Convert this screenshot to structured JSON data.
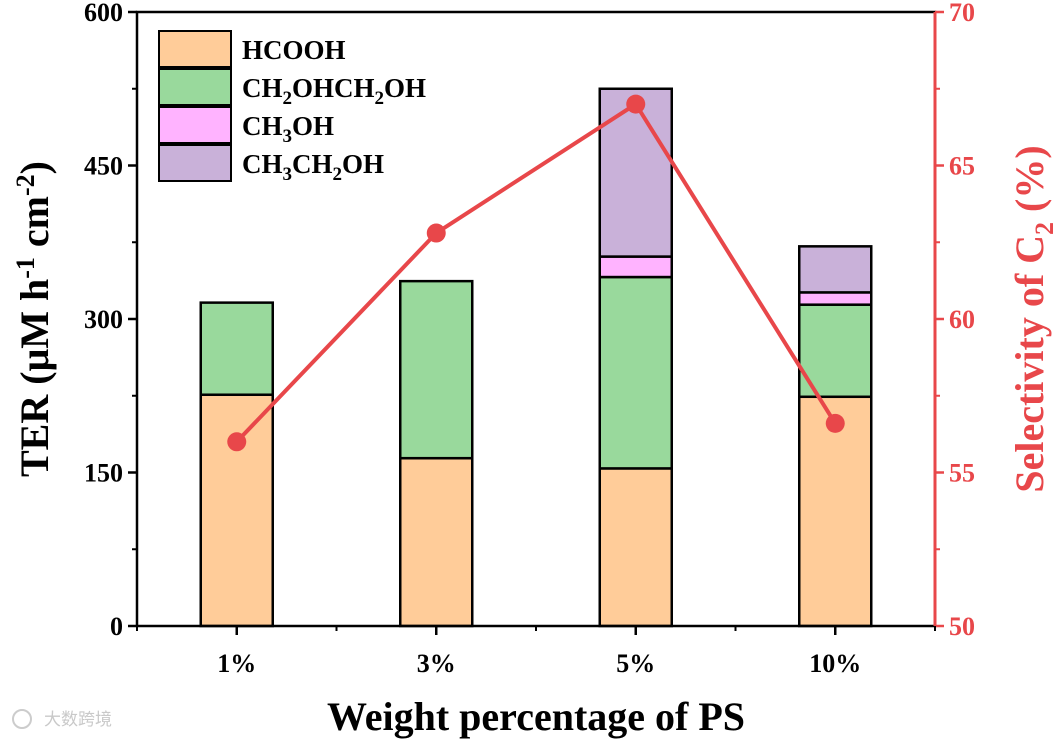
{
  "chart_data": {
    "type": "bar",
    "stacked": true,
    "categories": [
      "1%",
      "3%",
      "5%",
      "10%"
    ],
    "xlabel": "Weight percentage of PS",
    "ylabel": {
      "main": "TER (μM h",
      "sup1": "-1",
      "mid": " cm",
      "sup2": "-2",
      "end": ")"
    },
    "ylim": [
      0,
      600
    ],
    "yticks": [
      "0",
      "150",
      "300",
      "450",
      "600"
    ],
    "ytick_values": [
      0,
      150,
      300,
      450,
      600
    ],
    "series": [
      {
        "name": "HCOOH",
        "color": "#FFCC99",
        "values": [
          226,
          164,
          154,
          224
        ]
      },
      {
        "name": "CH2OHCH2OH",
        "color": "#99D99C",
        "values": [
          90,
          173,
          187,
          90
        ]
      },
      {
        "name": "CH3OH",
        "color": "#FFB3FF",
        "values": [
          0,
          0,
          20,
          12
        ]
      },
      {
        "name": "CH3CH2OH",
        "color": "#C9B1D9",
        "values": [
          0,
          0,
          164,
          45
        ]
      }
    ],
    "legend": [
      {
        "parts": [
          {
            "t": "HCOOH",
            "sub": false
          }
        ]
      },
      {
        "parts": [
          {
            "t": "CH",
            "sub": false
          },
          {
            "t": "2",
            "sub": true
          },
          {
            "t": "OHCH",
            "sub": false
          },
          {
            "t": "2",
            "sub": true
          },
          {
            "t": "OH",
            "sub": false
          }
        ]
      },
      {
        "parts": [
          {
            "t": "CH",
            "sub": false
          },
          {
            "t": "3",
            "sub": true
          },
          {
            "t": "OH",
            "sub": false
          }
        ]
      },
      {
        "parts": [
          {
            "t": "CH",
            "sub": false
          },
          {
            "t": "3",
            "sub": true
          },
          {
            "t": "CH",
            "sub": false
          },
          {
            "t": "2",
            "sub": true
          },
          {
            "t": "OH",
            "sub": false
          }
        ]
      }
    ],
    "legend_position": "top-left",
    "secondary_axis": {
      "label": {
        "main": "Selectivity of C",
        "sub": "2",
        "end": " (%)"
      },
      "ylim": [
        50,
        70
      ],
      "yticks": [
        "50",
        "55",
        "60",
        "65",
        "70"
      ],
      "ytick_values": [
        50,
        55,
        60,
        65,
        70
      ],
      "color": "#E8474A",
      "series": {
        "name": "Selectivity of C2",
        "type": "line",
        "values": [
          56.0,
          62.8,
          67.0,
          56.6
        ]
      }
    }
  },
  "watermark": "大数跨境"
}
